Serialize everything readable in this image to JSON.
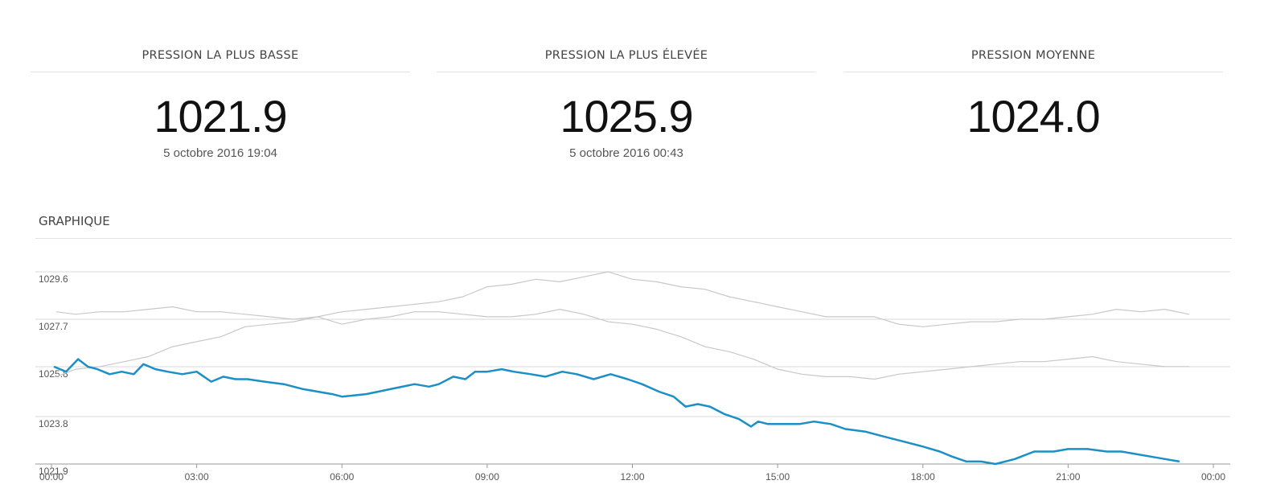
{
  "stats": [
    {
      "title": "PRESSION LA PLUS BASSE",
      "value": "1021.9",
      "date": "5 octobre 2016 19:04"
    },
    {
      "title": "PRESSION LA PLUS ÉLEVÉE",
      "value": "1025.9",
      "date": "5 octobre 2016 00:43"
    },
    {
      "title": "PRESSION MOYENNE",
      "value": "1024.0",
      "date": ""
    }
  ],
  "section_title": "GRAPHIQUE",
  "colors": {
    "main": "#1b8fc6",
    "reference": "#c8c8c8",
    "grid": "#d9d9d9",
    "axis": "#999999"
  },
  "chart_data": {
    "type": "line",
    "ylim": [
      1021.9,
      1029.6
    ],
    "xlim": [
      0,
      24
    ],
    "y_ticks": [
      "1029.6",
      "1027.7",
      "1025.8",
      "1023.8",
      "1021.9"
    ],
    "x_ticks": [
      "00:00",
      "03:00",
      "06:00",
      "09:00",
      "12:00",
      "15:00",
      "18:00",
      "21:00",
      "00:00"
    ],
    "x_tick_hours": [
      0,
      3,
      6,
      9,
      12,
      15,
      18,
      21,
      24
    ],
    "grid": true,
    "series": [
      {
        "style": "reference",
        "x": [
          0.1,
          0.5,
          1.0,
          1.5,
          2.0,
          2.5,
          3.0,
          3.5,
          4.0,
          4.5,
          5.0,
          5.5,
          6.0,
          6.5,
          7.0,
          7.5,
          8.0,
          8.5,
          9.0,
          9.5,
          10.0,
          10.5,
          11.0,
          11.5,
          12.0,
          12.5,
          13.0,
          13.5,
          14.0,
          14.5,
          15.0,
          15.5,
          16.0,
          16.5,
          17.0,
          17.5,
          18.0,
          18.5,
          19.0,
          19.5,
          20.0,
          20.5,
          21.0,
          21.5,
          22.0,
          22.5,
          23.0,
          23.5
        ],
        "y": [
          1025.4,
          1025.7,
          1025.8,
          1026.0,
          1026.2,
          1026.6,
          1026.8,
          1027.0,
          1027.4,
          1027.5,
          1027.6,
          1027.8,
          1028.0,
          1028.1,
          1028.2,
          1028.3,
          1028.4,
          1028.6,
          1029.0,
          1029.1,
          1029.3,
          1029.2,
          1029.4,
          1029.6,
          1029.3,
          1029.2,
          1029.0,
          1028.9,
          1028.6,
          1028.4,
          1028.2,
          1028.0,
          1027.8,
          1027.8,
          1027.8,
          1027.5,
          1027.4,
          1027.5,
          1027.6,
          1027.6,
          1027.7,
          1027.7,
          1027.8,
          1027.9,
          1028.1,
          1028.0,
          1028.1,
          1027.9
        ]
      },
      {
        "style": "reference",
        "x": [
          0.1,
          0.5,
          1.0,
          1.5,
          2.0,
          2.5,
          3.0,
          3.5,
          4.0,
          4.5,
          5.0,
          5.5,
          6.0,
          6.5,
          7.0,
          7.5,
          8.0,
          8.5,
          9.0,
          9.5,
          10.0,
          10.5,
          11.0,
          11.5,
          12.0,
          12.5,
          13.0,
          13.5,
          14.0,
          14.5,
          15.0,
          15.5,
          16.0,
          16.5,
          17.0,
          17.5,
          18.0,
          18.5,
          19.0,
          19.5,
          20.0,
          20.5,
          21.0,
          21.5,
          22.0,
          22.5,
          23.0,
          23.5
        ],
        "y": [
          1028.0,
          1027.9,
          1028.0,
          1028.0,
          1028.1,
          1028.2,
          1028.0,
          1028.0,
          1027.9,
          1027.8,
          1027.7,
          1027.8,
          1027.5,
          1027.7,
          1027.8,
          1028.0,
          1028.0,
          1027.9,
          1027.8,
          1027.8,
          1027.9,
          1028.1,
          1027.9,
          1027.6,
          1027.5,
          1027.3,
          1027.0,
          1026.6,
          1026.4,
          1026.1,
          1025.7,
          1025.5,
          1025.4,
          1025.4,
          1025.3,
          1025.5,
          1025.6,
          1025.7,
          1025.8,
          1025.9,
          1026.0,
          1026.0,
          1026.1,
          1026.2,
          1026.0,
          1025.9,
          1025.8,
          1025.8
        ]
      },
      {
        "style": "main",
        "x": [
          0.05,
          0.3,
          0.55,
          0.75,
          0.95,
          1.2,
          1.45,
          1.7,
          1.9,
          2.15,
          2.4,
          2.7,
          3.0,
          3.3,
          3.55,
          3.8,
          4.05,
          4.4,
          4.8,
          5.2,
          5.5,
          5.8,
          6.0,
          6.5,
          7.0,
          7.5,
          7.8,
          8.0,
          8.3,
          8.55,
          8.75,
          9.0,
          9.3,
          9.55,
          9.9,
          10.2,
          10.55,
          10.85,
          11.2,
          11.55,
          11.9,
          12.2,
          12.55,
          12.85,
          13.1,
          13.35,
          13.6,
          13.9,
          14.2,
          14.45,
          14.6,
          14.8,
          15.1,
          15.45,
          15.75,
          16.1,
          16.4,
          16.8,
          17.2,
          17.6,
          18.0,
          18.35,
          18.6,
          18.9,
          19.2,
          19.5,
          19.9,
          20.3,
          20.7,
          21.0,
          21.4,
          21.8,
          22.1,
          22.4,
          22.7,
          23.0,
          23.3
        ],
        "y": [
          1025.8,
          1025.6,
          1026.1,
          1025.8,
          1025.7,
          1025.5,
          1025.6,
          1025.5,
          1025.9,
          1025.7,
          1025.6,
          1025.5,
          1025.6,
          1025.2,
          1025.4,
          1025.3,
          1025.3,
          1025.2,
          1025.1,
          1024.9,
          1024.8,
          1024.7,
          1024.6,
          1024.7,
          1024.9,
          1025.1,
          1025.0,
          1025.1,
          1025.4,
          1025.3,
          1025.6,
          1025.6,
          1025.7,
          1025.6,
          1025.5,
          1025.4,
          1025.6,
          1025.5,
          1025.3,
          1025.5,
          1025.3,
          1025.1,
          1024.8,
          1024.6,
          1024.2,
          1024.3,
          1024.2,
          1023.9,
          1023.7,
          1023.4,
          1023.6,
          1023.5,
          1023.5,
          1023.5,
          1023.6,
          1023.5,
          1023.3,
          1023.2,
          1023.0,
          1022.8,
          1022.6,
          1022.4,
          1022.2,
          1022.0,
          1022.0,
          1021.9,
          1022.1,
          1022.4,
          1022.4,
          1022.5,
          1022.5,
          1022.4,
          1022.4,
          1022.3,
          1022.2,
          1022.1,
          1022.0
        ]
      }
    ]
  }
}
